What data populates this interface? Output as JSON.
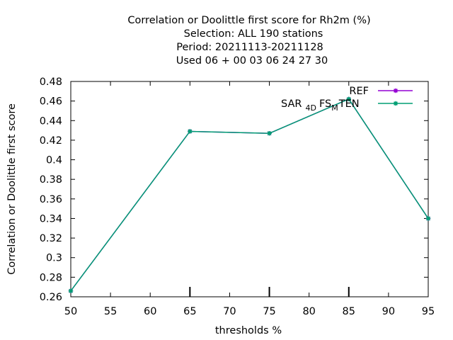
{
  "chart_data": {
    "type": "line",
    "title_lines": [
      "Correlation or Doolittle first score  for Rh2m (%)",
      "Selection: ALL    190 stations",
      "Period: 20211113-20211128",
      "Used  06 + 00 03 06 24 27 30"
    ],
    "xlabel": "thresholds %",
    "ylabel": "Correlation or Doolittle first score",
    "xlim": [
      50,
      95
    ],
    "ylim": [
      0.26,
      0.48
    ],
    "x_ticks": [
      50,
      55,
      60,
      65,
      70,
      75,
      80,
      85,
      90,
      95
    ],
    "y_ticks": [
      0.26,
      0.28,
      0.3,
      0.32,
      0.34,
      0.36,
      0.38,
      0.4,
      0.42,
      0.44,
      0.46,
      0.48
    ],
    "y_tick_labels": [
      "0.26",
      "0.28",
      "0.3",
      "0.32",
      "0.34",
      "0.36",
      "0.38",
      "0.4",
      "0.42",
      "0.44",
      "0.46",
      "0.48"
    ],
    "legend_position": "top-right",
    "legend": {
      "ref_label": "REF",
      "sar_main": "SAR",
      "sar_sub1": "4D",
      "sar_mid": "FS",
      "sar_sub2": "M",
      "sar_end": "TEN"
    },
    "series": [
      {
        "name": "REF",
        "color": "#9400d3",
        "x": [
          50,
          65,
          75,
          85,
          95
        ],
        "y": [
          0.266,
          0.429,
          0.427,
          0.462,
          0.34
        ]
      },
      {
        "name": "SAR_4D FS_M TEN",
        "color": "#009e73",
        "x": [
          50,
          65,
          75,
          85,
          95
        ],
        "y": [
          0.266,
          0.429,
          0.427,
          0.462,
          0.34
        ]
      }
    ],
    "sample_tick_x": [
      65,
      75,
      85
    ]
  }
}
